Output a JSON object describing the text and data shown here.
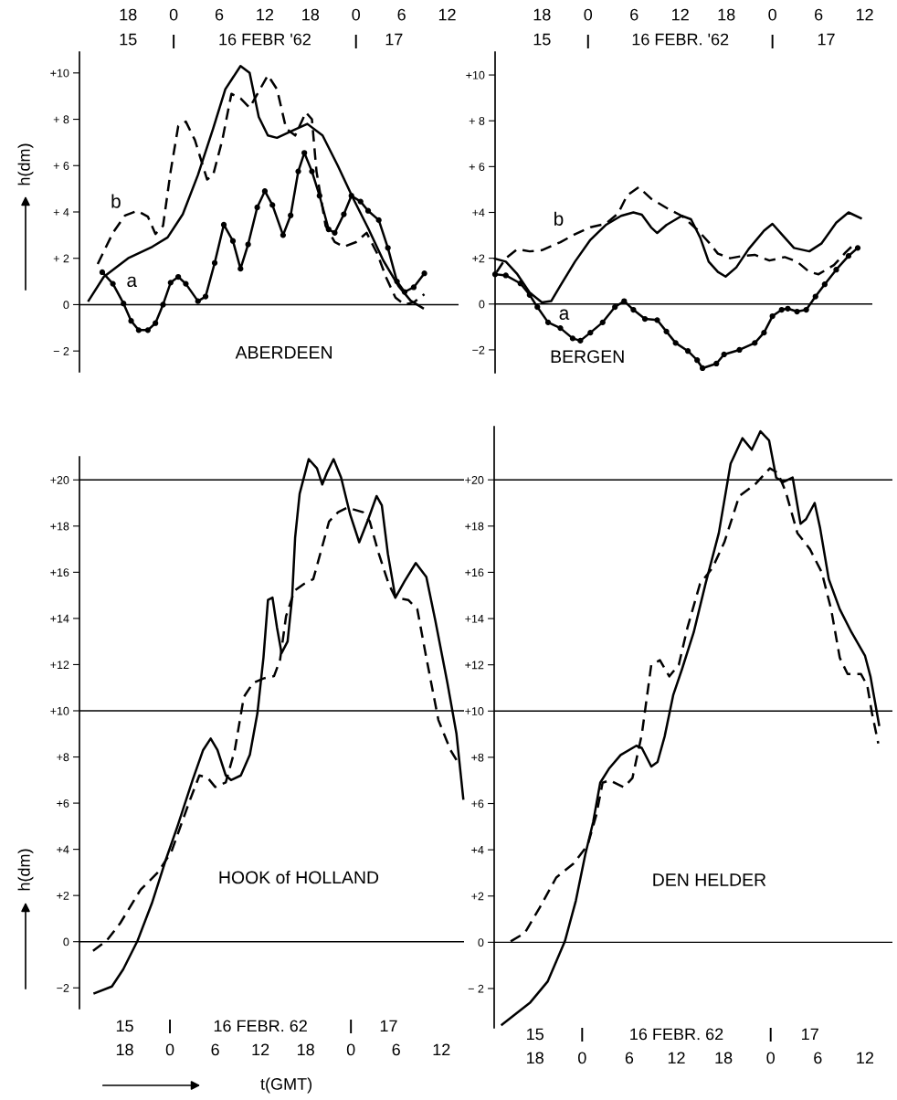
{
  "chart_data": [
    {
      "type": "line",
      "title": "ABERDEEN",
      "ylabel": "h(dm)",
      "xlim": [
        "1962-02-15T11:36",
        "1962-02-17T13:30"
      ],
      "ylim": [
        -2.9,
        10.9
      ],
      "xticks": [
        {
          "value": "1962-02-15T18:00",
          "label": "18"
        },
        {
          "value": "1962-02-16T00:00",
          "label": "0"
        },
        {
          "value": "1962-02-16T06:00",
          "label": "6"
        },
        {
          "value": "1962-02-16T12:00",
          "label": "12"
        },
        {
          "value": "1962-02-16T18:00",
          "label": "18"
        },
        {
          "value": "1962-02-17T00:00",
          "label": "0"
        },
        {
          "value": "1962-02-17T06:00",
          "label": "6"
        },
        {
          "value": "1962-02-17T12:00",
          "label": "12"
        }
      ],
      "x2lim": [
        "1962-02-15T11:36",
        "1962-02-17T13:30"
      ],
      "x2ticks": [
        {
          "value": "1962-02-15T18:00",
          "label": "15"
        },
        {
          "value": "1962-02-16T00:00",
          "label": null
        },
        {
          "value": "1962-02-16T12:00",
          "label": "16 FEBR '62"
        },
        {
          "value": "1962-02-17T00:00",
          "label": null
        },
        {
          "value": "1962-02-17T05:00",
          "label": "17"
        }
      ],
      "yticks": [
        {
          "value": 10,
          "label": "+10"
        },
        {
          "value": 8,
          "label": "+ 8"
        },
        {
          "value": 6,
          "label": "+ 6"
        },
        {
          "value": 4,
          "label": "+ 4"
        },
        {
          "value": 2,
          "label": "+ 2"
        },
        0,
        {
          "value": -2,
          "label": "− 2"
        }
      ],
      "ref_lines": [
        {
          "axis": "y",
          "value": 0,
          "color": "#000000"
        }
      ],
      "series": [
        {
          "color": "#000000",
          "line_style": "solid",
          "marker": "none",
          "x": [
            "1962-02-15T12:48",
            "1962-02-15T14:48",
            "1962-02-15T18:00",
            "1962-02-15T21:12",
            "1962-02-15T23:12",
            "1962-02-16T01:12",
            "1962-02-16T03:12",
            "1962-02-16T05:12",
            "1962-02-16T06:48",
            "1962-02-16T08:48",
            "1962-02-16T10:00",
            "1962-02-16T11:12",
            "1962-02-16T12:24",
            "1962-02-16T13:36",
            "1962-02-16T15:36",
            "1962-02-16T17:36",
            "1962-02-16T19:36",
            "1962-02-16T21:36",
            "1962-02-16T23:36",
            "1962-02-17T01:36",
            "1962-02-17T03:36",
            "1962-02-17T05:36",
            "1962-02-17T07:12",
            "1962-02-17T08:48"
          ],
          "values": [
            0.17,
            1.2,
            2.0,
            2.5,
            2.9,
            3.9,
            5.6,
            7.6,
            9.3,
            10.3,
            10.0,
            8.1,
            7.3,
            7.2,
            7.5,
            7.8,
            7.3,
            6.0,
            4.6,
            3.3,
            1.9,
            0.8,
            0.17,
            -0.15
          ]
        },
        {
          "name": "b",
          "color": "#000000",
          "line_style": "dashed",
          "marker": "none",
          "x": [
            "1962-02-15T14:00",
            "1962-02-15T16:00",
            "1962-02-15T17:36",
            "1962-02-15T19:12",
            "1962-02-15T20:36",
            "1962-02-15T21:36",
            "1962-02-15T22:36",
            "1962-02-15T23:36",
            "1962-02-16T00:36",
            "1962-02-16T01:36",
            "1962-02-16T02:48",
            "1962-02-16T04:24",
            "1962-02-16T05:12",
            "1962-02-16T06:24",
            "1962-02-16T07:36",
            "1962-02-16T08:48",
            "1962-02-16T10:00",
            "1962-02-16T11:12",
            "1962-02-16T12:24",
            "1962-02-16T13:36",
            "1962-02-16T14:48",
            "1962-02-16T16:00",
            "1962-02-16T17:24",
            "1962-02-16T18:12",
            "1962-02-16T18:48",
            "1962-02-16T20:00",
            "1962-02-16T21:12",
            "1962-02-16T22:24",
            "1962-02-17T00:00",
            "1962-02-17T01:24",
            "1962-02-17T02:48",
            "1962-02-17T04:00",
            "1962-02-17T05:12",
            "1962-02-17T06:24",
            "1962-02-17T07:36",
            "1962-02-17T09:00"
          ],
          "values": [
            1.75,
            3.1,
            3.85,
            4.05,
            3.8,
            3.05,
            3.4,
            5.75,
            7.7,
            7.9,
            7.1,
            5.4,
            5.6,
            7.1,
            9.1,
            8.9,
            8.5,
            9.2,
            9.9,
            9.3,
            7.6,
            7.3,
            8.3,
            8.0,
            5.75,
            3.4,
            2.7,
            2.5,
            2.7,
            3.1,
            2.2,
            1.15,
            0.3,
            0,
            0.1,
            0.45
          ]
        },
        {
          "name": "a",
          "color": "#000000",
          "line_style": "solid",
          "marker": "circle",
          "x": [
            "1962-02-15T14:36",
            "1962-02-15T16:00",
            "1962-02-15T17:24",
            "1962-02-15T18:24",
            "1962-02-15T19:24",
            "1962-02-15T20:36",
            "1962-02-15T21:36",
            "1962-02-15T22:36",
            "1962-02-15T23:36",
            "1962-02-16T00:36",
            "1962-02-16T01:36",
            "1962-02-16T03:12",
            "1962-02-16T04:12",
            "1962-02-16T05:24",
            "1962-02-16T06:36",
            "1962-02-16T07:48",
            "1962-02-16T08:48",
            "1962-02-16T09:48",
            "1962-02-16T11:00",
            "1962-02-16T12:00",
            "1962-02-16T13:00",
            "1962-02-16T14:24",
            "1962-02-16T15:24",
            "1962-02-16T16:24",
            "1962-02-16T17:12",
            "1962-02-16T18:12",
            "1962-02-16T19:12",
            "1962-02-16T20:24",
            "1962-02-16T21:12",
            "1962-02-16T22:24",
            "1962-02-16T23:24",
            "1962-02-17T00:36",
            "1962-02-17T01:36",
            "1962-02-17T03:00",
            "1962-02-17T04:12",
            "1962-02-17T05:24",
            "1962-02-17T06:24",
            "1962-02-17T07:36",
            "1962-02-17T09:00"
          ],
          "values": [
            1.4,
            0.9,
            0.05,
            -0.7,
            -1.1,
            -1.1,
            -0.8,
            0,
            0.95,
            1.2,
            0.9,
            0.15,
            0.35,
            1.8,
            3.45,
            2.75,
            1.55,
            2.6,
            4.2,
            4.9,
            4.3,
            3.0,
            3.85,
            5.75,
            6.55,
            5.75,
            4.7,
            3.25,
            3.1,
            3.9,
            4.7,
            4.45,
            4.05,
            3.65,
            2.45,
            1.0,
            0.55,
            0.75,
            1.35
          ]
        }
      ]
    },
    {
      "type": "line",
      "title": "BERGEN",
      "xlim": [
        "1962-02-15T11:54",
        "1962-02-17T13:00"
      ],
      "ylim": [
        -3.0,
        11.0
      ],
      "xticks": [
        {
          "value": "1962-02-15T18:00",
          "label": "18"
        },
        {
          "value": "1962-02-16T00:00",
          "label": "0"
        },
        {
          "value": "1962-02-16T06:00",
          "label": "6"
        },
        {
          "value": "1962-02-16T12:00",
          "label": "12"
        },
        {
          "value": "1962-02-16T18:00",
          "label": "18"
        },
        {
          "value": "1962-02-17T00:00",
          "label": "0"
        },
        {
          "value": "1962-02-17T06:00",
          "label": "6"
        },
        {
          "value": "1962-02-17T12:00",
          "label": "12"
        }
      ],
      "x2lim": [
        "1962-02-15T11:54",
        "1962-02-17T13:00"
      ],
      "x2ticks": [
        {
          "value": "1962-02-15T18:00",
          "label": "15"
        },
        {
          "value": "1962-02-16T00:00",
          "label": null
        },
        {
          "value": "1962-02-16T12:00",
          "label": "16 FEBR. '62"
        },
        {
          "value": "1962-02-17T00:00",
          "label": null
        },
        {
          "value": "1962-02-17T07:00",
          "label": "17"
        }
      ],
      "yticks": [
        {
          "value": 10,
          "label": "+10"
        },
        {
          "value": 8,
          "label": "+ 8"
        },
        {
          "value": 6,
          "label": "+ 6"
        },
        {
          "value": 4,
          "label": "+4"
        },
        {
          "value": 2,
          "label": "+2"
        },
        0,
        {
          "value": -2,
          "label": "−2"
        }
      ],
      "ref_lines": [
        {
          "axis": "y",
          "value": 0,
          "color": "#000000"
        }
      ],
      "series": [
        {
          "color": "#000000",
          "line_style": "solid",
          "marker": "none",
          "x": [
            "1962-02-15T11:54",
            "1962-02-15T13:18",
            "1962-02-15T14:48",
            "1962-02-15T16:24",
            "1962-02-15T18:00",
            "1962-02-15T19:12",
            "1962-02-15T20:24",
            "1962-02-15T22:18",
            "1962-02-16T00:18",
            "1962-02-16T02:18",
            "1962-02-16T04:18",
            "1962-02-16T05:54",
            "1962-02-16T07:00",
            "1962-02-16T08:12",
            "1962-02-16T09:00",
            "1962-02-16T10:12",
            "1962-02-16T12:12",
            "1962-02-16T13:24",
            "1962-02-16T14:36",
            "1962-02-16T15:42",
            "1962-02-16T16:54",
            "1962-02-16T17:54",
            "1962-02-16T19:18",
            "1962-02-16T20:54",
            "1962-02-16T22:54",
            "1962-02-17T00:00",
            "1962-02-17T01:12",
            "1962-02-17T02:48",
            "1962-02-17T04:48",
            "1962-02-17T06:24",
            "1962-02-17T08:18",
            "1962-02-17T09:54",
            "1962-02-17T11:30"
          ],
          "values": [
            1.98,
            1.85,
            1.3,
            0.5,
            0.07,
            0.13,
            0.8,
            1.85,
            2.8,
            3.45,
            3.85,
            4.0,
            3.9,
            3.35,
            3.1,
            3.45,
            3.85,
            3.7,
            2.9,
            1.85,
            1.4,
            1.2,
            1.6,
            2.4,
            3.2,
            3.5,
            3.05,
            2.45,
            2.3,
            2.65,
            3.55,
            4.0,
            3.75
          ]
        },
        {
          "name": "b",
          "color": "#000000",
          "line_style": "dashed",
          "marker": "none",
          "x": [
            "1962-02-15T12:06",
            "1962-02-15T13:18",
            "1962-02-15T14:48",
            "1962-02-15T16:24",
            "1962-02-15T18:00",
            "1962-02-15T20:24",
            "1962-02-15T22:18",
            "1962-02-16T00:18",
            "1962-02-16T02:18",
            "1962-02-16T03:54",
            "1962-02-16T05:06",
            "1962-02-16T06:36",
            "1962-02-16T08:12",
            "1962-02-16T10:12",
            "1962-02-16T12:12",
            "1962-02-16T14:12",
            "1962-02-16T15:42",
            "1962-02-16T16:54",
            "1962-02-16T18:30",
            "1962-02-16T20:06",
            "1962-02-16T21:42",
            "1962-02-16T23:36",
            "1962-02-17T01:36",
            "1962-02-17T03:12",
            "1962-02-17T04:48",
            "1962-02-17T06:00",
            "1962-02-17T08:00",
            "1962-02-17T09:30",
            "1962-02-17T10:54"
          ],
          "values": [
            1.4,
            2.0,
            2.4,
            2.3,
            2.35,
            2.7,
            3.05,
            3.35,
            3.5,
            3.95,
            4.75,
            5.1,
            4.6,
            4.2,
            3.85,
            3.25,
            2.7,
            2.2,
            2.0,
            2.1,
            2.15,
            1.9,
            2.05,
            1.85,
            1.4,
            1.3,
            1.7,
            2.25,
            2.7
          ]
        },
        {
          "name": "a",
          "color": "#000000",
          "line_style": "solid",
          "marker": "circle",
          "x": [
            "1962-02-15T11:54",
            "1962-02-15T13:18",
            "1962-02-15T15:12",
            "1962-02-15T16:24",
            "1962-02-15T17:24",
            "1962-02-15T18:48",
            "1962-02-15T20:24",
            "1962-02-15T22:00",
            "1962-02-15T23:00",
            "1962-02-16T00:18",
            "1962-02-16T01:54",
            "1962-02-16T03:30",
            "1962-02-16T04:42",
            "1962-02-16T05:54",
            "1962-02-16T07:24",
            "1962-02-16T09:00",
            "1962-02-16T10:12",
            "1962-02-16T11:24",
            "1962-02-16T13:00",
            "1962-02-16T14:12",
            "1962-02-16T14:54",
            "1962-02-16T16:42",
            "1962-02-16T17:42",
            "1962-02-16T19:42",
            "1962-02-16T21:42",
            "1962-02-16T22:54",
            "1962-02-17T00:00",
            "1962-02-17T01:12",
            "1962-02-17T02:00",
            "1962-02-17T03:12",
            "1962-02-17T04:24",
            "1962-02-17T05:36",
            "1962-02-17T06:48",
            "1962-02-17T08:18",
            "1962-02-17T09:54",
            "1962-02-17T11:06"
          ],
          "values": [
            1.3,
            1.25,
            0.9,
            0.4,
            -0.13,
            -0.8,
            -1.05,
            -1.5,
            -1.6,
            -1.25,
            -0.8,
            -0.13,
            0.13,
            -0.25,
            -0.65,
            -0.7,
            -1.2,
            -1.7,
            -2.05,
            -2.45,
            -2.8,
            -2.6,
            -2.2,
            -2.0,
            -1.7,
            -1.25,
            -0.53,
            -0.25,
            -0.2,
            -0.33,
            -0.25,
            0.33,
            0.86,
            1.5,
            2.1,
            2.45
          ]
        }
      ]
    },
    {
      "type": "line",
      "title": "HOOK of HOLLAND",
      "ylabel": "h(dm)",
      "xlabel": "t(GMT)",
      "xlim": [
        "1962-02-15T12:00",
        "1962-02-17T15:00"
      ],
      "ylim": [
        -2.9,
        21
      ],
      "x2lim": [
        "1962-02-15T12:00",
        "1962-02-17T15:00"
      ],
      "xticks": [
        {
          "value": "1962-02-15T18:00",
          "label": "18"
        },
        {
          "value": "1962-02-16T00:00",
          "label": "0"
        },
        {
          "value": "1962-02-16T06:00",
          "label": "6"
        },
        {
          "value": "1962-02-16T12:00",
          "label": "12"
        },
        {
          "value": "1962-02-16T18:00",
          "label": "18"
        },
        {
          "value": "1962-02-17T00:00",
          "label": "0"
        },
        {
          "value": "1962-02-17T06:00",
          "label": "6"
        },
        {
          "value": "1962-02-17T12:00",
          "label": "12"
        }
      ],
      "x2ticks": [
        {
          "value": "1962-02-15T18:00",
          "label": "15"
        },
        {
          "value": "1962-02-16T00:00",
          "label": null
        },
        {
          "value": "1962-02-16T12:00",
          "label": "16 FEBR. 62"
        },
        {
          "value": "1962-02-17T00:00",
          "label": null
        },
        {
          "value": "1962-02-17T05:00",
          "label": "17"
        }
      ],
      "yticks": [
        {
          "value": 20,
          "label": "+20"
        },
        {
          "value": 18,
          "label": "+18"
        },
        {
          "value": 16,
          "label": "+16"
        },
        {
          "value": 14,
          "label": "+14"
        },
        {
          "value": 12,
          "label": "+12"
        },
        {
          "value": 10,
          "label": "+10"
        },
        {
          "value": 8,
          "label": "+8"
        },
        {
          "value": 6,
          "label": "+6"
        },
        {
          "value": 4,
          "label": "+4"
        },
        {
          "value": 2,
          "label": "+2"
        },
        0,
        {
          "value": -2,
          "label": "−2"
        }
      ],
      "ref_lines": [
        {
          "axis": "y",
          "value": 0,
          "color": "#000000"
        },
        {
          "axis": "y",
          "value": 10,
          "color": "#000000"
        },
        {
          "axis": "y",
          "value": 20,
          "color": "#000000"
        }
      ],
      "series": [
        {
          "color": "#000000",
          "line_style": "solid",
          "marker": "none",
          "x": [
            "1962-02-15T14:00",
            "1962-02-15T16:18",
            "1962-02-15T17:48",
            "1962-02-15T19:42",
            "1962-02-15T21:36",
            "1962-02-15T23:24",
            "1962-02-16T01:00",
            "1962-02-16T03:00",
            "1962-02-16T04:24",
            "1962-02-16T05:24",
            "1962-02-16T06:18",
            "1962-02-16T07:24",
            "1962-02-16T08:06",
            "1962-02-16T09:24",
            "1962-02-16T10:36",
            "1962-02-16T11:36",
            "1962-02-16T12:24",
            "1962-02-16T13:00",
            "1962-02-16T13:36",
            "1962-02-16T14:12",
            "1962-02-16T14:48",
            "1962-02-16T15:36",
            "1962-02-16T16:12",
            "1962-02-16T16:36",
            "1962-02-16T17:12",
            "1962-02-16T18:24",
            "1962-02-16T19:30",
            "1962-02-16T20:12",
            "1962-02-16T20:48",
            "1962-02-16T21:42",
            "1962-02-16T22:42",
            "1962-02-16T23:54",
            "1962-02-17T01:06",
            "1962-02-17T02:18",
            "1962-02-17T03:24",
            "1962-02-17T04:06",
            "1962-02-17T04:54",
            "1962-02-17T05:54",
            "1962-02-17T07:06",
            "1962-02-17T08:36",
            "1962-02-17T10:00",
            "1962-02-17T11:12",
            "1962-02-17T12:48",
            "1962-02-17T14:00",
            "1962-02-17T14:54"
          ],
          "values": [
            -2.23,
            -1.94,
            -1.2,
            0.04,
            1.66,
            3.5,
            5.0,
            7.0,
            8.3,
            8.8,
            8.3,
            7.2,
            7.0,
            7.2,
            8.1,
            9.9,
            12.3,
            14.8,
            14.9,
            13.6,
            12.5,
            13.0,
            14.9,
            17.5,
            19.4,
            20.9,
            20.5,
            19.8,
            20.3,
            20.9,
            20.1,
            18.5,
            17.3,
            18.3,
            19.3,
            18.9,
            16.8,
            14.9,
            15.6,
            16.4,
            15.8,
            13.9,
            11.2,
            9.0,
            6.2
          ]
        },
        {
          "color": "#000000",
          "line_style": "dashed",
          "marker": "none",
          "x": [
            "1962-02-15T13:48",
            "1962-02-15T15:36",
            "1962-02-15T17:24",
            "1962-02-15T20:06",
            "1962-02-15T22:24",
            "1962-02-16T00:12",
            "1962-02-16T02:30",
            "1962-02-16T03:54",
            "1962-02-16T05:00",
            "1962-02-16T06:00",
            "1962-02-16T07:24",
            "1962-02-16T08:36",
            "1962-02-16T09:48",
            "1962-02-16T11:00",
            "1962-02-16T12:24",
            "1962-02-16T13:48",
            "1962-02-16T14:36",
            "1962-02-16T15:24",
            "1962-02-16T16:30",
            "1962-02-16T17:48",
            "1962-02-16T19:00",
            "1962-02-16T20:06",
            "1962-02-16T21:06",
            "1962-02-16T22:18",
            "1962-02-16T23:30",
            "1962-02-17T01:36",
            "1962-02-17T02:30",
            "1962-02-17T03:42",
            "1962-02-17T05:00",
            "1962-02-17T05:54",
            "1962-02-17T07:36",
            "1962-02-17T08:48",
            "1962-02-17T10:00",
            "1962-02-17T11:36",
            "1962-02-17T13:12",
            "1962-02-17T14:18"
          ],
          "values": [
            -0.4,
            0.04,
            0.8,
            2.25,
            3.0,
            3.9,
            6.0,
            7.2,
            7.1,
            6.7,
            6.9,
            8.3,
            10.6,
            11.2,
            11.4,
            11.5,
            12.2,
            14.1,
            15.2,
            15.5,
            15.7,
            17.0,
            18.2,
            18.6,
            18.8,
            18.6,
            18.2,
            16.8,
            15.5,
            14.9,
            14.8,
            14.4,
            12.3,
            9.6,
            8.3,
            7.7
          ]
        }
      ]
    },
    {
      "type": "line",
      "title": "DEN HELDER",
      "xlim": [
        "1962-02-15T12:48",
        "1962-02-17T15:30"
      ],
      "ylim": [
        -3.7,
        22.3
      ],
      "x2lim": [
        "1962-02-15T12:48",
        "1962-02-17T15:30"
      ],
      "xticks": [
        {
          "value": "1962-02-15T18:00",
          "label": "18"
        },
        {
          "value": "1962-02-16T00:00",
          "label": "0"
        },
        {
          "value": "1962-02-16T06:00",
          "label": "6"
        },
        {
          "value": "1962-02-16T12:00",
          "label": "12"
        },
        {
          "value": "1962-02-16T18:00",
          "label": "18"
        },
        {
          "value": "1962-02-17T00:00",
          "label": "0"
        },
        {
          "value": "1962-02-17T06:00",
          "label": "6"
        },
        {
          "value": "1962-02-17T12:00",
          "label": "12"
        }
      ],
      "x2ticks": [
        {
          "value": "1962-02-15T18:00",
          "label": "15"
        },
        {
          "value": "1962-02-16T00:00",
          "label": null
        },
        {
          "value": "1962-02-16T12:00",
          "label": "16 FEBR. 62"
        },
        {
          "value": "1962-02-17T00:00",
          "label": null
        },
        {
          "value": "1962-02-17T05:00",
          "label": "17"
        }
      ],
      "yticks": [
        {
          "value": 20,
          "label": "+20"
        },
        {
          "value": 18,
          "label": "+18"
        },
        {
          "value": 16,
          "label": "+16"
        },
        {
          "value": 14,
          "label": "+14"
        },
        {
          "value": 12,
          "label": "+12"
        },
        {
          "value": 10,
          "label": "+10"
        },
        {
          "value": 8,
          "label": "+8"
        },
        {
          "value": 6,
          "label": "+6"
        },
        {
          "value": 4,
          "label": "+4"
        },
        {
          "value": 2,
          "label": "+2"
        },
        0,
        {
          "value": -2,
          "label": "− 2"
        }
      ],
      "ref_lines": [
        {
          "axis": "y",
          "value": 0,
          "color": "#000000"
        },
        {
          "axis": "y",
          "value": 10,
          "color": "#000000"
        },
        {
          "axis": "y",
          "value": 20,
          "color": "#000000"
        }
      ],
      "series": [
        {
          "color": "#000000",
          "line_style": "solid",
          "marker": "none",
          "x": [
            "1962-02-15T13:48",
            "1962-02-15T17:24",
            "1962-02-15T19:36",
            "1962-02-15T21:48",
            "1962-02-15T23:12",
            "1962-02-16T00:24",
            "1962-02-16T01:24",
            "1962-02-16T02:18",
            "1962-02-16T03:24",
            "1962-02-16T04:54",
            "1962-02-16T06:54",
            "1962-02-16T07:36",
            "1962-02-16T08:48",
            "1962-02-16T09:36",
            "1962-02-16T10:30",
            "1962-02-16T11:36",
            "1962-02-16T12:42",
            "1962-02-16T14:12",
            "1962-02-16T15:42",
            "1962-02-16T17:24",
            "1962-02-16T18:54",
            "1962-02-16T20:24",
            "1962-02-16T21:36",
            "1962-02-16T22:42",
            "1962-02-16T23:48",
            "1962-02-17T00:42",
            "1962-02-17T01:36",
            "1962-02-17T02:48",
            "1962-02-17T03:48",
            "1962-02-17T04:30",
            "1962-02-17T05:36",
            "1962-02-17T06:18",
            "1962-02-17T07:24",
            "1962-02-17T08:48",
            "1962-02-17T10:18",
            "1962-02-17T12:00",
            "1962-02-17T12:42",
            "1962-02-17T13:48"
          ],
          "values": [
            -3.56,
            -2.6,
            -1.7,
            0.04,
            1.8,
            3.8,
            5.2,
            6.9,
            7.5,
            8.1,
            8.5,
            8.4,
            7.6,
            7.8,
            8.9,
            10.7,
            11.8,
            13.4,
            15.5,
            17.7,
            20.7,
            21.8,
            21.3,
            22.1,
            21.7,
            20.1,
            19.9,
            20.1,
            18.1,
            18.3,
            19.0,
            17.9,
            15.7,
            14.4,
            13.4,
            12.4,
            11.5,
            9.4
          ]
        },
        {
          "color": "#000000",
          "line_style": "dashed",
          "marker": "none",
          "x": [
            "1962-02-15T14:54",
            "1962-02-15T16:42",
            "1962-02-15T18:36",
            "1962-02-15T20:42",
            "1962-02-15T22:54",
            "1962-02-16T00:42",
            "1962-02-16T01:48",
            "1962-02-16T02:36",
            "1962-02-16T03:30",
            "1962-02-16T05:18",
            "1962-02-16T06:24",
            "1962-02-16T07:36",
            "1962-02-16T08:48",
            "1962-02-16T09:54",
            "1962-02-16T11:06",
            "1962-02-16T12:18",
            "1962-02-16T13:24",
            "1962-02-16T15:00",
            "1962-02-16T16:36",
            "1962-02-16T18:06",
            "1962-02-16T20:00",
            "1962-02-16T22:00",
            "1962-02-16T23:54",
            "1962-02-17T00:54",
            "1962-02-17T01:54",
            "1962-02-17T03:24",
            "1962-02-17T05:00",
            "1962-02-17T06:30",
            "1962-02-17T07:42",
            "1962-02-17T08:48",
            "1962-02-17T09:48",
            "1962-02-17T11:30",
            "1962-02-17T12:18",
            "1962-02-17T12:54",
            "1962-02-17T13:42"
          ],
          "values": [
            0.04,
            0.4,
            1.5,
            2.8,
            3.4,
            4.2,
            5.5,
            6.9,
            7.0,
            6.7,
            7.1,
            9.0,
            12.0,
            12.2,
            11.5,
            12.0,
            13.6,
            15.5,
            16.2,
            17.3,
            19.3,
            19.8,
            20.5,
            20.3,
            19.5,
            17.7,
            17.0,
            16.0,
            14.4,
            12.3,
            11.6,
            11.6,
            11.1,
            9.9,
            8.6
          ]
        }
      ]
    }
  ]
}
